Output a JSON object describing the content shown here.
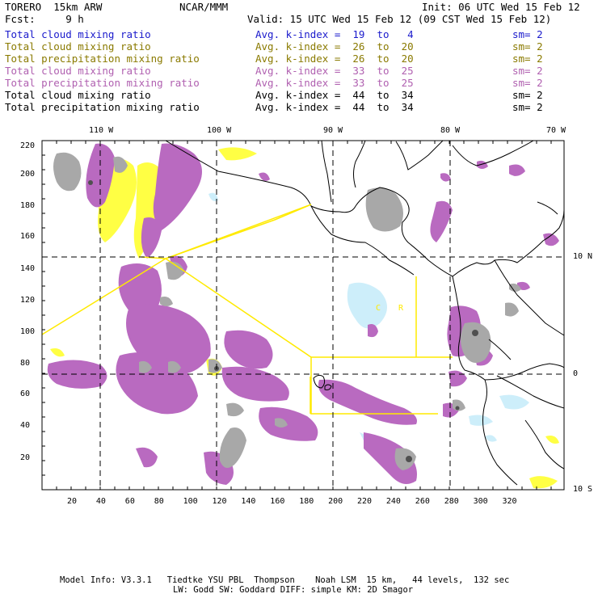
{
  "header": {
    "model": "TORERO  15km ARW",
    "org": "NCAR/MMM",
    "init": "Init: 06 UTC Wed 15 Feb 12",
    "fcst": "Fcst:     9 h",
    "valid": "Valid: 15 UTC Wed 15 Feb 12 (09 CST Wed 15 Feb 12)"
  },
  "fields": [
    {
      "name": "Total cloud mixing ratio",
      "avg": "Avg. k-index =  19  to   4",
      "sm": "sm= 2",
      "color": "#1a1acc"
    },
    {
      "name": "Total cloud mixing ratio",
      "avg": "Avg. k-index =  26  to  20",
      "sm": "sm= 2",
      "color": "#8a7a00"
    },
    {
      "name": "Total precipitation mixing ratio",
      "avg": "Avg. k-index =  26  to  20",
      "sm": "sm= 2",
      "color": "#8a7a00"
    },
    {
      "name": "Total cloud mixing ratio",
      "avg": "Avg. k-index =  33  to  25",
      "sm": "sm= 2",
      "color": "#b060b0"
    },
    {
      "name": "Total precipitation mixing ratio",
      "avg": "Avg. k-index =  33  to  25",
      "sm": "sm= 2",
      "color": "#b060b0"
    },
    {
      "name": "Total cloud mixing ratio",
      "avg": "Avg. k-index =  44  to  34",
      "sm": "sm= 2",
      "color": "#000000"
    },
    {
      "name": "Total precipitation mixing ratio",
      "avg": "Avg. k-index =  44  to  34",
      "sm": "sm= 2",
      "color": "#000000"
    }
  ],
  "map": {
    "top_lon_labels": [
      "110 W",
      "100 W",
      "90 W",
      "80 W",
      "70 W"
    ],
    "right_lat_labels": [
      "10 N",
      "0",
      "10 S"
    ],
    "left_y_ticks": [
      "220",
      "200",
      "180",
      "160",
      "140",
      "120",
      "100",
      "80",
      "60",
      "40",
      "20"
    ],
    "bottom_x_ticks": [
      "20",
      "40",
      "60",
      "80",
      "100",
      "120",
      "140",
      "160",
      "180",
      "200",
      "220",
      "240",
      "260",
      "280",
      "300",
      "320"
    ],
    "region_labels": [
      "C",
      "R"
    ],
    "colors": {
      "blue_light": "#cdeefa",
      "yellow": "#ffff44",
      "magenta": "#b96ac0",
      "gray": "#a8a8a8",
      "dark": "#505050",
      "box": "#ffea00"
    }
  },
  "footer": {
    "line1": "Model Info: V3.3.1   Tiedtke YSU PBL  Thompson    Noah LSM  15 km,   44 levels,  132 sec",
    "line2": "LW: Godd SW: Goddard DIFF: simple KM: 2D Smagor"
  }
}
